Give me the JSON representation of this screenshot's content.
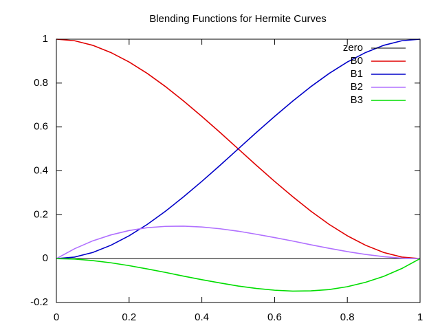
{
  "chart_data": {
    "type": "line",
    "title": "Blending Functions for Hermite Curves",
    "x": [
      0,
      0.05,
      0.1,
      0.15,
      0.2,
      0.25,
      0.3,
      0.35,
      0.4,
      0.45,
      0.5,
      0.55,
      0.6,
      0.65,
      0.7,
      0.75,
      0.8,
      0.85,
      0.9,
      0.95,
      1
    ],
    "series": [
      {
        "name": "zero",
        "color": "#000000",
        "values": [
          0,
          0,
          0,
          0,
          0,
          0,
          0,
          0,
          0,
          0,
          0,
          0,
          0,
          0,
          0,
          0,
          0,
          0,
          0,
          0,
          0
        ]
      },
      {
        "name": "B0",
        "color": "#e00000",
        "values": [
          1,
          0.993,
          0.972,
          0.939,
          0.896,
          0.844,
          0.784,
          0.718,
          0.648,
          0.575,
          0.5,
          0.425,
          0.352,
          0.282,
          0.216,
          0.156,
          0.104,
          0.061,
          0.028,
          0.007,
          0
        ]
      },
      {
        "name": "B1",
        "color": "#0000c8",
        "values": [
          0,
          0.007,
          0.028,
          0.061,
          0.104,
          0.156,
          0.216,
          0.282,
          0.352,
          0.425,
          0.5,
          0.575,
          0.648,
          0.718,
          0.784,
          0.844,
          0.896,
          0.939,
          0.972,
          0.993,
          1
        ]
      },
      {
        "name": "B2",
        "color": "#b070ff",
        "values": [
          0,
          0.045,
          0.081,
          0.108,
          0.128,
          0.141,
          0.147,
          0.148,
          0.144,
          0.136,
          0.125,
          0.111,
          0.096,
          0.08,
          0.063,
          0.047,
          0.032,
          0.019,
          0.009,
          0.002,
          0
        ]
      },
      {
        "name": "B3",
        "color": "#00dd00",
        "values": [
          0,
          -0.002,
          -0.009,
          -0.019,
          -0.032,
          -0.047,
          -0.063,
          -0.08,
          -0.096,
          -0.111,
          -0.125,
          -0.136,
          -0.144,
          -0.148,
          -0.147,
          -0.141,
          -0.128,
          -0.108,
          -0.081,
          -0.045,
          0
        ]
      }
    ],
    "xlim": [
      0,
      1
    ],
    "xticks": [
      0,
      0.2,
      0.4,
      0.6,
      0.8,
      1
    ],
    "ylim": [
      -0.2,
      1
    ],
    "yticks": [
      -0.2,
      0,
      0.2,
      0.4,
      0.6,
      0.8,
      1
    ],
    "grid": false,
    "legend": "top right"
  }
}
